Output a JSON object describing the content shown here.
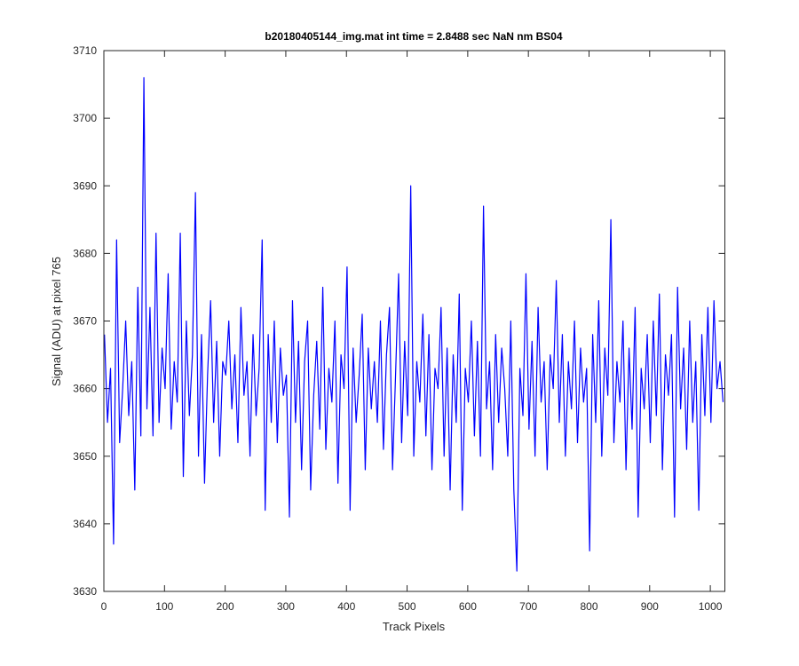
{
  "chart_data": {
    "type": "line",
    "title": "b20180405144_img.mat int time = 2.8488 sec  NaN nm BS04",
    "xlabel": "Track Pixels",
    "ylabel": "Signal (ADU) at pixel 765",
    "xlim": [
      0,
      1024
    ],
    "ylim": [
      3630,
      3710
    ],
    "xticks": [
      0,
      100,
      200,
      300,
      400,
      500,
      600,
      700,
      800,
      900,
      1000
    ],
    "yticks": [
      3630,
      3640,
      3650,
      3660,
      3670,
      3680,
      3690,
      3700,
      3710
    ],
    "grid": false,
    "x": [
      1,
      6,
      11,
      16,
      21,
      26,
      31,
      36,
      41,
      46,
      51,
      56,
      61,
      66,
      71,
      76,
      81,
      86,
      91,
      96,
      101,
      106,
      111,
      116,
      121,
      126,
      131,
      136,
      141,
      146,
      151,
      156,
      161,
      166,
      171,
      176,
      181,
      186,
      191,
      196,
      201,
      206,
      211,
      216,
      221,
      226,
      231,
      236,
      241,
      246,
      251,
      256,
      261,
      266,
      271,
      276,
      281,
      286,
      291,
      296,
      301,
      306,
      311,
      316,
      321,
      326,
      331,
      336,
      341,
      346,
      351,
      356,
      361,
      366,
      371,
      376,
      381,
      386,
      391,
      396,
      401,
      406,
      411,
      416,
      421,
      426,
      431,
      436,
      441,
      446,
      451,
      456,
      461,
      466,
      471,
      476,
      481,
      486,
      491,
      496,
      501,
      506,
      511,
      516,
      521,
      526,
      531,
      536,
      541,
      546,
      551,
      556,
      561,
      566,
      571,
      576,
      581,
      586,
      591,
      596,
      601,
      606,
      611,
      616,
      621,
      626,
      631,
      636,
      641,
      646,
      651,
      656,
      661,
      666,
      671,
      676,
      681,
      686,
      691,
      696,
      701,
      706,
      711,
      716,
      721,
      726,
      731,
      736,
      741,
      746,
      751,
      756,
      761,
      766,
      771,
      776,
      781,
      786,
      791,
      796,
      801,
      806,
      811,
      816,
      821,
      826,
      831,
      836,
      841,
      846,
      851,
      856,
      861,
      866,
      871,
      876,
      881,
      886,
      891,
      896,
      901,
      906,
      911,
      916,
      921,
      926,
      931,
      936,
      941,
      946,
      951,
      956,
      961,
      966,
      971,
      976,
      981,
      986,
      991,
      996,
      1001,
      1006,
      1011,
      1016,
      1021
    ],
    "series": [
      {
        "name": "signal",
        "color": "#0000ff",
        "values": [
          3668,
          3655,
          3663,
          3637,
          3682,
          3652,
          3660,
          3670,
          3656,
          3664,
          3645,
          3675,
          3653,
          3706,
          3657,
          3672,
          3653,
          3683,
          3655,
          3666,
          3660,
          3677,
          3654,
          3664,
          3658,
          3683,
          3647,
          3670,
          3656,
          3665,
          3689,
          3650,
          3668,
          3646,
          3662,
          3673,
          3655,
          3667,
          3650,
          3664,
          3662,
          3670,
          3657,
          3665,
          3652,
          3672,
          3659,
          3664,
          3650,
          3668,
          3656,
          3663,
          3682,
          3642,
          3668,
          3655,
          3670,
          3652,
          3666,
          3659,
          3662,
          3641,
          3673,
          3655,
          3667,
          3648,
          3664,
          3670,
          3645,
          3659,
          3667,
          3654,
          3675,
          3651,
          3663,
          3658,
          3670,
          3646,
          3665,
          3660,
          3678,
          3642,
          3666,
          3655,
          3662,
          3671,
          3648,
          3666,
          3657,
          3664,
          3655,
          3670,
          3651,
          3665,
          3672,
          3648,
          3662,
          3677,
          3652,
          3667,
          3656,
          3690,
          3650,
          3664,
          3658,
          3671,
          3653,
          3668,
          3648,
          3663,
          3660,
          3672,
          3650,
          3666,
          3645,
          3665,
          3655,
          3674,
          3642,
          3663,
          3658,
          3670,
          3653,
          3667,
          3650,
          3687,
          3657,
          3664,
          3648,
          3668,
          3655,
          3666,
          3660,
          3650,
          3670,
          3645,
          3633,
          3663,
          3656,
          3677,
          3654,
          3667,
          3650,
          3672,
          3658,
          3664,
          3648,
          3665,
          3660,
          3676,
          3655,
          3668,
          3650,
          3664,
          3657,
          3670,
          3652,
          3666,
          3658,
          3663,
          3636,
          3668,
          3655,
          3673,
          3650,
          3666,
          3659,
          3685,
          3652,
          3664,
          3658,
          3670,
          3648,
          3666,
          3654,
          3672,
          3641,
          3663,
          3657,
          3668,
          3652,
          3670,
          3656,
          3674,
          3648,
          3665,
          3659,
          3668,
          3641,
          3675,
          3657,
          3666,
          3651,
          3670,
          3655,
          3664,
          3642,
          3668,
          3656,
          3672,
          3655,
          3673,
          3660,
          3664,
          3658
        ]
      }
    ]
  }
}
